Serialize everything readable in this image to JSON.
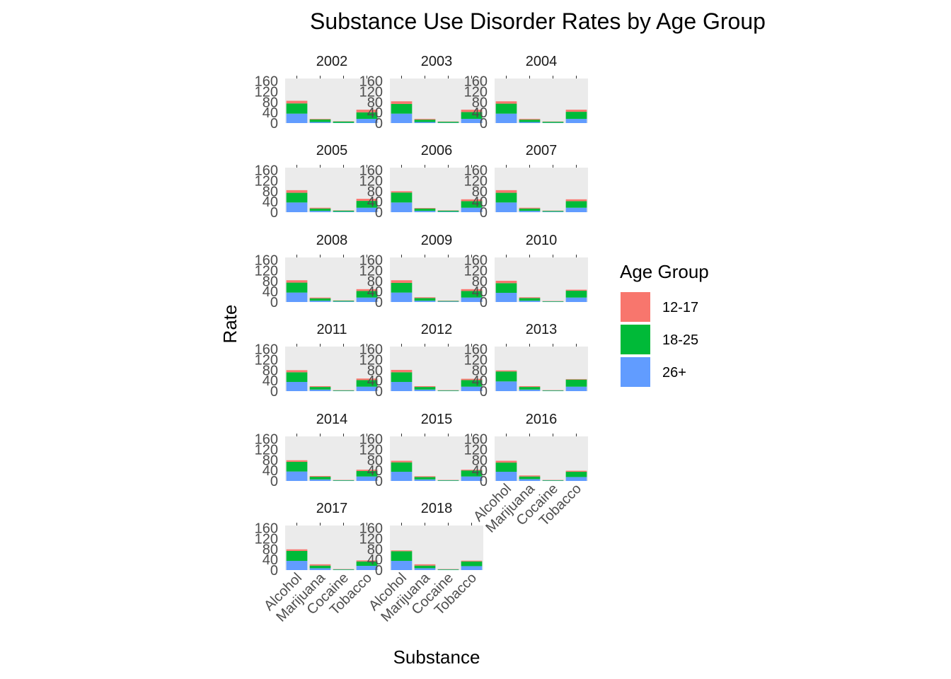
{
  "chart_data": {
    "type": "bar",
    "stacked": true,
    "title": "Substance Use Disorder Rates by Age Group",
    "xlabel": "Substance",
    "ylabel": "Rate",
    "categories": [
      "Alcohol",
      "Marijuana",
      "Cocaine",
      "Tobacco"
    ],
    "y_ticks": [
      "0",
      "40",
      "80",
      "120",
      "160"
    ],
    "ylim": [
      0,
      170
    ],
    "legend": {
      "title": "Age Group",
      "position": "right",
      "entries": [
        {
          "name": "12-17",
          "color": "#F8766D"
        },
        {
          "name": "18-25",
          "color": "#00BA38"
        },
        {
          "name": "26+",
          "color": "#619CFF"
        }
      ]
    },
    "stack_order_bottom_to_top": [
      "26+",
      "18-25",
      "12-17"
    ],
    "grid": false,
    "facets": [
      {
        "year": "2002",
        "values": {
          "26+": [
            36,
            4,
            1,
            16
          ],
          "18-25": [
            39,
            10,
            5,
            25
          ],
          "12-17": [
            10,
            2,
            1,
            10
          ]
        }
      },
      {
        "year": "2003",
        "values": {
          "26+": [
            36,
            4,
            1,
            16
          ],
          "18-25": [
            37,
            9,
            4,
            26
          ],
          "12-17": [
            10,
            3,
            1,
            9
          ]
        }
      },
      {
        "year": "2004",
        "values": {
          "26+": [
            36,
            4,
            1,
            16
          ],
          "18-25": [
            38,
            9,
            4,
            27
          ],
          "12-17": [
            9,
            3,
            1,
            8
          ]
        }
      },
      {
        "year": "2005",
        "values": {
          "26+": [
            37,
            5,
            2,
            17
          ],
          "18-25": [
            37,
            9,
            4,
            26
          ],
          "12-17": [
            10,
            3,
            1,
            8
          ]
        }
      },
      {
        "year": "2006",
        "values": {
          "26+": [
            37,
            5,
            2,
            17
          ],
          "18-25": [
            38,
            9,
            4,
            25
          ],
          "12-17": [
            5,
            2,
            1,
            7
          ]
        }
      },
      {
        "year": "2007",
        "values": {
          "26+": [
            37,
            5,
            2,
            17
          ],
          "18-25": [
            37,
            9,
            3,
            25
          ],
          "12-17": [
            10,
            3,
            1,
            7
          ]
        }
      },
      {
        "year": "2008",
        "values": {
          "26+": [
            36,
            5,
            2,
            17
          ],
          "18-25": [
            38,
            9,
            3,
            25
          ],
          "12-17": [
            9,
            3,
            1,
            7
          ]
        }
      },
      {
        "year": "2009",
        "values": {
          "26+": [
            36,
            5,
            2,
            17
          ],
          "18-25": [
            37,
            10,
            2,
            25
          ],
          "12-17": [
            10,
            3,
            1,
            7
          ]
        }
      },
      {
        "year": "2010",
        "values": {
          "26+": [
            35,
            5,
            1,
            17
          ],
          "18-25": [
            37,
            10,
            2,
            26
          ],
          "12-17": [
            9,
            3,
            1,
            4
          ]
        }
      },
      {
        "year": "2011",
        "values": {
          "26+": [
            35,
            6,
            1,
            17
          ],
          "18-25": [
            37,
            10,
            2,
            25
          ],
          "12-17": [
            8,
            3,
            1,
            6
          ]
        }
      },
      {
        "year": "2012",
        "values": {
          "26+": [
            35,
            6,
            1,
            17
          ],
          "18-25": [
            37,
            10,
            2,
            25
          ],
          "12-17": [
            9,
            3,
            1,
            5
          ]
        }
      },
      {
        "year": "2013",
        "values": {
          "26+": [
            37,
            6,
            1,
            17
          ],
          "18-25": [
            38,
            10,
            2,
            27
          ],
          "12-17": [
            4,
            3,
            1,
            2
          ]
        }
      },
      {
        "year": "2014",
        "values": {
          "26+": [
            36,
            6,
            1,
            17
          ],
          "18-25": [
            37,
            10,
            2,
            21
          ],
          "12-17": [
            6,
            3,
            1,
            5
          ]
        }
      },
      {
        "year": "2015",
        "values": {
          "26+": [
            35,
            6,
            1,
            17
          ],
          "18-25": [
            36,
            9,
            2,
            23
          ],
          "12-17": [
            6,
            3,
            1,
            3
          ]
        }
      },
      {
        "year": "2016",
        "values": {
          "26+": [
            35,
            7,
            1,
            15
          ],
          "18-25": [
            35,
            10,
            2,
            20
          ],
          "12-17": [
            7,
            4,
            1,
            4
          ]
        }
      },
      {
        "year": "2017",
        "values": {
          "26+": [
            35,
            7,
            1,
            16
          ],
          "18-25": [
            38,
            10,
            2,
            17
          ],
          "12-17": [
            6,
            5,
            1,
            4
          ]
        }
      },
      {
        "year": "2018",
        "values": {
          "26+": [
            35,
            7,
            1,
            15
          ],
          "18-25": [
            37,
            10,
            2,
            18
          ],
          "12-17": [
            3,
            5,
            1,
            3
          ]
        }
      }
    ]
  }
}
